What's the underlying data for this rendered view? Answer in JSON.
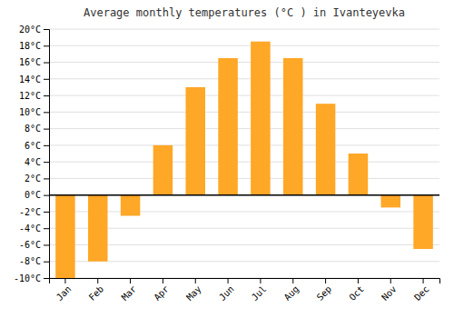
{
  "chart_data": {
    "type": "bar",
    "title": "Average monthly temperatures (°C ) in Ivanteyevka",
    "categories": [
      "Jan",
      "Feb",
      "Mar",
      "Apr",
      "May",
      "Jun",
      "Jul",
      "Aug",
      "Sep",
      "Oct",
      "Nov",
      "Dec"
    ],
    "values": [
      -10,
      -8,
      -2.5,
      6,
      13,
      16.5,
      18.5,
      16.5,
      11,
      5,
      -1.5,
      -6.5
    ],
    "color": "#FFA726",
    "ylim": [
      -10,
      20
    ],
    "yticks": [
      {
        "value": -10,
        "label": "-10°C"
      },
      {
        "value": -8,
        "label": "-8°C"
      },
      {
        "value": -6,
        "label": "-6°C"
      },
      {
        "value": -4,
        "label": "-4°C"
      },
      {
        "value": -2,
        "label": "-2°C"
      },
      {
        "value": 0,
        "label": "0°C"
      },
      {
        "value": 2,
        "label": "2°C"
      },
      {
        "value": 4,
        "label": "4°C"
      },
      {
        "value": 6,
        "label": "6°C"
      },
      {
        "value": 8,
        "label": "8°C"
      },
      {
        "value": 10,
        "label": "10°C"
      },
      {
        "value": 12,
        "label": "12°C"
      },
      {
        "value": 14,
        "label": "14°C"
      },
      {
        "value": 16,
        "label": "16°C"
      },
      {
        "value": 18,
        "label": "18°C"
      },
      {
        "value": 20,
        "label": "20°C"
      }
    ],
    "grid": true
  }
}
